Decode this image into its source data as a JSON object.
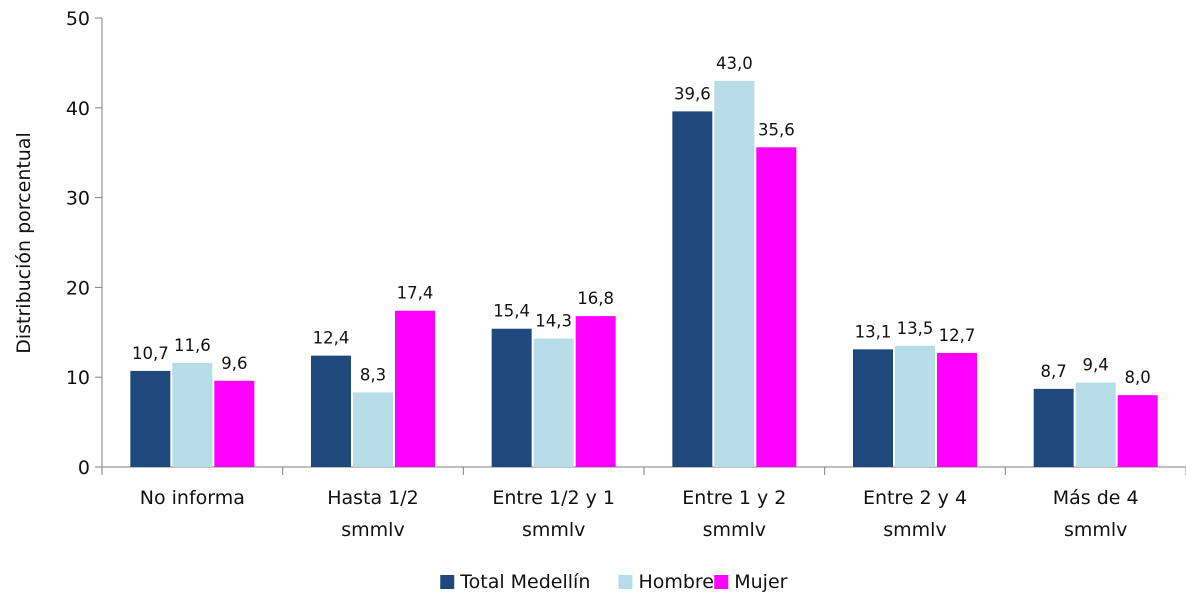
{
  "chart_data": {
    "type": "bar",
    "title": "",
    "xlabel": "",
    "ylabel": "Distribución porcentual",
    "ylim": [
      0,
      50
    ],
    "yticks": [
      0,
      10,
      20,
      30,
      40,
      50
    ],
    "grid": false,
    "legend_position": "bottom",
    "categories": [
      [
        "No informa"
      ],
      [
        "Hasta 1/2",
        "smmlv"
      ],
      [
        "Entre 1/2 y 1",
        "smmlv"
      ],
      [
        "Entre 1 y 2",
        "smmlv"
      ],
      [
        "Entre 2 y 4",
        "smmlv"
      ],
      [
        "Más de 4",
        "smmlv"
      ]
    ],
    "series": [
      {
        "name": "Total Medellín",
        "color": "#1f497d",
        "values": [
          10.7,
          12.4,
          15.4,
          39.6,
          13.1,
          8.7
        ],
        "labels": [
          "10,7",
          "12,4",
          "15,4",
          "39,6",
          "13,1",
          "8,7"
        ]
      },
      {
        "name": "Hombre",
        "color": "#b7dde8",
        "values": [
          11.6,
          8.3,
          14.3,
          43.0,
          13.5,
          9.4
        ],
        "labels": [
          "11,6",
          "8,3",
          "14,3",
          "43,0",
          "13,5",
          "9,4"
        ]
      },
      {
        "name": "Mujer",
        "color": "#ff00ff",
        "values": [
          9.6,
          17.4,
          16.8,
          35.6,
          12.7,
          8.0
        ],
        "labels": [
          "9,6",
          "17,4",
          "16,8",
          "35,6",
          "12,7",
          "8,0"
        ]
      }
    ]
  }
}
